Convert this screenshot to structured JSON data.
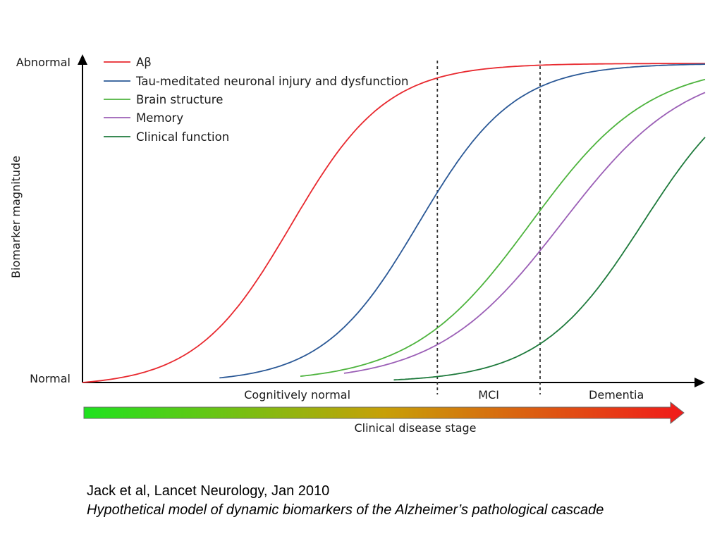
{
  "chart_data": {
    "type": "line",
    "xlabel": "Clinical disease stage",
    "ylabel": "Biomarker magnitude",
    "y_tick_labels": {
      "top": "Abnormal",
      "bottom": "Normal"
    },
    "stages": [
      {
        "label": "Cognitively normal"
      },
      {
        "label": "MCI"
      },
      {
        "label": "Dementia"
      }
    ],
    "stage_boundaries": [
      0.57,
      0.735
    ],
    "xlim": [
      0,
      1
    ],
    "ylim": [
      0,
      1
    ],
    "grid": false,
    "legend_position": "top-left",
    "series": [
      {
        "name": "Aβ",
        "color": "#e8282e",
        "midpoint": 0.335,
        "steepness": 13,
        "x_start": 0.0,
        "x_end": 1.0
      },
      {
        "name": "Tau-meditated neuronal injury and dysfunction",
        "color": "#2a5896",
        "midpoint": 0.54,
        "steepness": 13,
        "x_start": 0.22,
        "x_end": 1.0
      },
      {
        "name": "Brain structure",
        "color": "#4db33d",
        "midpoint": 0.72,
        "steepness": 10.5,
        "x_start": 0.35,
        "x_end": 1.0
      },
      {
        "name": "Memory",
        "color": "#9b5fb6",
        "midpoint": 0.77,
        "steepness": 10,
        "x_start": 0.42,
        "x_end": 1.0
      },
      {
        "name": "Clinical function",
        "color": "#1e7a3c",
        "midpoint": 0.9,
        "steepness": 12,
        "x_start": 0.5,
        "x_end": 1.0
      }
    ],
    "stage_arrow_gradient": [
      "#1ee21e",
      "#c7a008",
      "#f11a1a"
    ]
  },
  "caption": {
    "citation": "Jack et al, Lancet Neurology, Jan 2010",
    "description": "Hypothetical model of dynamic biomarkers of the Alzheimer’s pathological cascade"
  }
}
